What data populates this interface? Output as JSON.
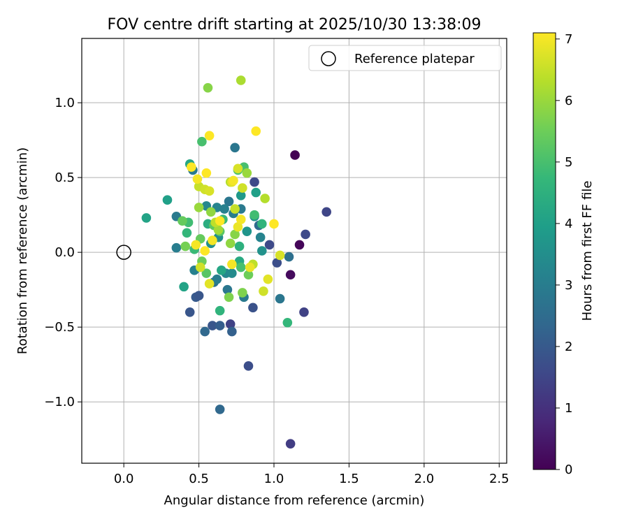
{
  "chart_data": {
    "type": "scatter",
    "title": "FOV centre drift starting at 2025/10/30 13:38:09",
    "xlabel": "Angular distance from reference (arcmin)",
    "ylabel": "Rotation from reference (arcmin)",
    "xlim": [
      -0.28,
      2.55
    ],
    "ylim": [
      -1.41,
      1.43
    ],
    "x_ticks": [
      0.0,
      0.5,
      1.0,
      1.5,
      2.0,
      2.5
    ],
    "x_tick_labels": [
      "0.0",
      "0.5",
      "1.0",
      "1.5",
      "2.0",
      "2.5"
    ],
    "y_ticks": [
      -1.0,
      -0.5,
      0.0,
      0.5,
      1.0
    ],
    "y_tick_labels": [
      "−1.0",
      "−0.5",
      "0.0",
      "0.5",
      "1.0"
    ],
    "grid": true,
    "legend": {
      "position": "top-right",
      "entries": [
        "Reference platepar"
      ]
    },
    "reference_point": {
      "x": 0.0,
      "y": 0.0,
      "label": "Reference platepar",
      "marker": "hollow-circle"
    },
    "colorbar": {
      "label": "Hours from first FF file",
      "colormap": "viridis",
      "range": [
        0,
        7.1
      ],
      "ticks": [
        0,
        1,
        2,
        3,
        4,
        5,
        6,
        7
      ],
      "tick_labels": [
        "0",
        "1",
        "2",
        "3",
        "4",
        "5",
        "6",
        "7"
      ]
    },
    "colormap_stops": [
      "#440154",
      "#482878",
      "#3e4989",
      "#31688e",
      "#26828e",
      "#1f9e89",
      "#35b779",
      "#6ece58",
      "#b5de2b",
      "#fde725"
    ],
    "points": [
      {
        "x": 1.14,
        "y": 0.65,
        "h": 0.0
      },
      {
        "x": 1.17,
        "y": 0.05,
        "h": 0.1
      },
      {
        "x": 1.11,
        "y": -0.15,
        "h": 0.2
      },
      {
        "x": 1.35,
        "y": 0.27,
        "h": 1.5
      },
      {
        "x": 1.21,
        "y": 0.12,
        "h": 1.6
      },
      {
        "x": 1.2,
        "y": -0.4,
        "h": 1.4
      },
      {
        "x": 1.11,
        "y": -1.28,
        "h": 1.3
      },
      {
        "x": 0.83,
        "y": -0.76,
        "h": 1.7
      },
      {
        "x": 0.97,
        "y": 0.05,
        "h": 1.6
      },
      {
        "x": 1.02,
        "y": -0.07,
        "h": 1.7
      },
      {
        "x": 0.87,
        "y": 0.47,
        "h": 1.6
      },
      {
        "x": 0.86,
        "y": -0.37,
        "h": 1.8
      },
      {
        "x": 0.71,
        "y": -0.48,
        "h": 1.4
      },
      {
        "x": 0.59,
        "y": -0.49,
        "h": 1.9
      },
      {
        "x": 0.64,
        "y": -0.49,
        "h": 2.1
      },
      {
        "x": 0.72,
        "y": -0.53,
        "h": 2.2
      },
      {
        "x": 0.54,
        "y": -0.53,
        "h": 2.4
      },
      {
        "x": 0.44,
        "y": -0.4,
        "h": 1.9
      },
      {
        "x": 0.48,
        "y": -0.3,
        "h": 2.0
      },
      {
        "x": 0.5,
        "y": -0.29,
        "h": 1.9
      },
      {
        "x": 0.64,
        "y": -1.05,
        "h": 2.4
      },
      {
        "x": 1.1,
        "y": -0.03,
        "h": 2.6
      },
      {
        "x": 1.04,
        "y": -0.31,
        "h": 2.8
      },
      {
        "x": 0.9,
        "y": 0.18,
        "h": 2.5
      },
      {
        "x": 0.74,
        "y": 0.7,
        "h": 2.8
      },
      {
        "x": 0.46,
        "y": 0.55,
        "h": 2.9
      },
      {
        "x": 0.35,
        "y": 0.24,
        "h": 2.9
      },
      {
        "x": 0.35,
        "y": 0.03,
        "h": 3.0
      },
      {
        "x": 0.47,
        "y": -0.12,
        "h": 3.1
      },
      {
        "x": 0.6,
        "y": -0.2,
        "h": 2.7
      },
      {
        "x": 0.69,
        "y": -0.25,
        "h": 2.8
      },
      {
        "x": 0.8,
        "y": -0.3,
        "h": 2.9
      },
      {
        "x": 0.62,
        "y": -0.18,
        "h": 3.0
      },
      {
        "x": 0.7,
        "y": 0.34,
        "h": 2.8
      },
      {
        "x": 0.78,
        "y": 0.29,
        "h": 2.9
      },
      {
        "x": 0.91,
        "y": 0.1,
        "h": 3.2
      },
      {
        "x": 0.62,
        "y": 0.3,
        "h": 3.2
      },
      {
        "x": 0.55,
        "y": 0.31,
        "h": 3.3
      },
      {
        "x": 0.67,
        "y": 0.29,
        "h": 3.1
      },
      {
        "x": 0.73,
        "y": 0.26,
        "h": 3.0
      },
      {
        "x": 0.68,
        "y": -0.14,
        "h": 3.3
      },
      {
        "x": 0.72,
        "y": -0.14,
        "h": 3.4
      },
      {
        "x": 0.58,
        "y": 0.06,
        "h": 3.5
      },
      {
        "x": 0.63,
        "y": 0.1,
        "h": 3.5
      },
      {
        "x": 0.87,
        "y": 0.24,
        "h": 3.6
      },
      {
        "x": 0.82,
        "y": 0.14,
        "h": 3.7
      },
      {
        "x": 0.78,
        "y": 0.38,
        "h": 3.8
      },
      {
        "x": 0.92,
        "y": 0.01,
        "h": 3.6
      },
      {
        "x": 0.29,
        "y": 0.35,
        "h": 4.0
      },
      {
        "x": 0.15,
        "y": 0.23,
        "h": 4.1
      },
      {
        "x": 0.44,
        "y": 0.59,
        "h": 4.2
      },
      {
        "x": 0.4,
        "y": -0.23,
        "h": 4.1
      },
      {
        "x": 0.77,
        "y": -0.06,
        "h": 4.3
      },
      {
        "x": 0.88,
        "y": 0.4,
        "h": 4.0
      },
      {
        "x": 0.65,
        "y": -0.12,
        "h": 4.2
      },
      {
        "x": 0.56,
        "y": 0.19,
        "h": 4.4
      },
      {
        "x": 0.77,
        "y": 0.04,
        "h": 4.5
      },
      {
        "x": 0.64,
        "y": -0.39,
        "h": 4.6
      },
      {
        "x": 1.09,
        "y": -0.47,
        "h": 4.7
      },
      {
        "x": 0.92,
        "y": 0.19,
        "h": 4.6
      },
      {
        "x": 0.87,
        "y": 0.25,
        "h": 4.9
      },
      {
        "x": 0.8,
        "y": 0.57,
        "h": 5.0
      },
      {
        "x": 0.76,
        "y": 0.55,
        "h": 5.1
      },
      {
        "x": 0.42,
        "y": 0.13,
        "h": 4.7
      },
      {
        "x": 0.43,
        "y": 0.2,
        "h": 4.9
      },
      {
        "x": 0.47,
        "y": 0.02,
        "h": 4.8
      },
      {
        "x": 0.66,
        "y": 0.22,
        "h": 4.8
      },
      {
        "x": 0.52,
        "y": 0.74,
        "h": 5.0
      },
      {
        "x": 0.64,
        "y": 0.14,
        "h": 5.2
      },
      {
        "x": 0.78,
        "y": -0.1,
        "h": 5.0
      },
      {
        "x": 0.6,
        "y": 0.18,
        "h": 5.3
      },
      {
        "x": 0.55,
        "y": -0.14,
        "h": 5.2
      },
      {
        "x": 0.83,
        "y": -0.15,
        "h": 5.5
      },
      {
        "x": 0.39,
        "y": 0.21,
        "h": 5.4
      },
      {
        "x": 0.51,
        "y": 0.09,
        "h": 5.4
      },
      {
        "x": 0.52,
        "y": -0.06,
        "h": 5.5
      },
      {
        "x": 0.41,
        "y": 0.04,
        "h": 5.6
      },
      {
        "x": 0.56,
        "y": 1.1,
        "h": 5.8
      },
      {
        "x": 0.79,
        "y": -0.27,
        "h": 5.7
      },
      {
        "x": 0.7,
        "y": -0.3,
        "h": 5.7
      },
      {
        "x": 0.71,
        "y": 0.06,
        "h": 5.9
      },
      {
        "x": 0.74,
        "y": 0.12,
        "h": 5.8
      },
      {
        "x": 0.82,
        "y": 0.53,
        "h": 6.0
      },
      {
        "x": 0.5,
        "y": 0.3,
        "h": 6.0
      },
      {
        "x": 0.58,
        "y": 0.27,
        "h": 5.9
      },
      {
        "x": 0.63,
        "y": 0.15,
        "h": 6.1
      },
      {
        "x": 0.78,
        "y": 1.15,
        "h": 6.2
      },
      {
        "x": 0.71,
        "y": 0.47,
        "h": 6.3
      },
      {
        "x": 0.94,
        "y": 0.36,
        "h": 6.3
      },
      {
        "x": 0.86,
        "y": -0.08,
        "h": 6.4
      },
      {
        "x": 0.74,
        "y": 0.29,
        "h": 6.5
      },
      {
        "x": 0.61,
        "y": 0.2,
        "h": 6.4
      },
      {
        "x": 0.5,
        "y": 0.44,
        "h": 6.5
      },
      {
        "x": 0.54,
        "y": 0.42,
        "h": 6.6
      },
      {
        "x": 0.57,
        "y": 0.41,
        "h": 6.7
      },
      {
        "x": 0.51,
        "y": -0.1,
        "h": 6.6
      },
      {
        "x": 0.57,
        "y": -0.21,
        "h": 6.8
      },
      {
        "x": 0.76,
        "y": 0.56,
        "h": 6.7
      },
      {
        "x": 0.79,
        "y": 0.43,
        "h": 6.6
      },
      {
        "x": 0.72,
        "y": 0.47,
        "h": 6.8
      },
      {
        "x": 0.96,
        "y": -0.18,
        "h": 6.8
      },
      {
        "x": 0.93,
        "y": -0.26,
        "h": 6.6
      },
      {
        "x": 1.04,
        "y": -0.02,
        "h": 6.7
      },
      {
        "x": 0.84,
        "y": -0.1,
        "h": 6.9
      },
      {
        "x": 0.72,
        "y": -0.08,
        "h": 7.0
      },
      {
        "x": 0.76,
        "y": 0.17,
        "h": 6.9
      },
      {
        "x": 0.78,
        "y": 0.22,
        "h": 7.0
      },
      {
        "x": 0.59,
        "y": 0.08,
        "h": 7.0
      },
      {
        "x": 0.54,
        "y": 0.01,
        "h": 7.1
      },
      {
        "x": 0.48,
        "y": 0.05,
        "h": 7.0
      },
      {
        "x": 0.49,
        "y": 0.49,
        "h": 7.0
      },
      {
        "x": 0.55,
        "y": 0.53,
        "h": 7.1
      },
      {
        "x": 0.57,
        "y": 0.78,
        "h": 7.1
      },
      {
        "x": 0.45,
        "y": 0.57,
        "h": 7.1
      },
      {
        "x": 0.88,
        "y": 0.81,
        "h": 7.1
      },
      {
        "x": 1.0,
        "y": 0.19,
        "h": 7.1
      },
      {
        "x": 0.64,
        "y": 0.21,
        "h": 7.1
      },
      {
        "x": 0.73,
        "y": 0.48,
        "h": 7.0
      }
    ]
  }
}
